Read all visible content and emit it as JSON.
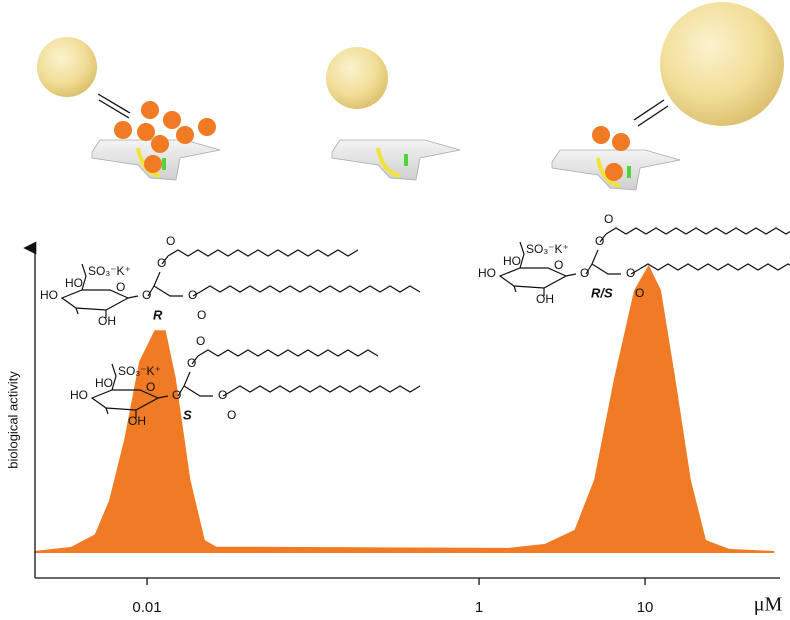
{
  "chart_data": {
    "type": "area",
    "y_label": "biological activity",
    "x_unit": "μM",
    "log_x": true,
    "color": "#f07b24",
    "x": [
      0.0021,
      0.0035,
      0.0049,
      0.006,
      0.0074,
      0.0091,
      0.0112,
      0.0128,
      0.0147,
      0.018,
      0.022,
      0.026,
      1.5,
      2.5,
      3.8,
      5,
      6.6,
      8.7,
      10.5,
      12.3,
      15,
      18.6,
      23,
      32,
      60
    ],
    "values": [
      7.7,
      8.9,
      12.7,
      23,
      41,
      64,
      73,
      73,
      59,
      29,
      11,
      9,
      8.6,
      9.8,
      14,
      29,
      59,
      85,
      92,
      85,
      59,
      29,
      11,
      8.3,
      7.7
    ],
    "xlim": [
      0.002,
      65
    ],
    "ylim": [
      0,
      100
    ],
    "xticks": [
      0.01,
      1,
      10
    ],
    "structures": [
      {
        "labels": [
          "SO₃⁻K⁺",
          "HO",
          "HO",
          "OH",
          "O",
          "O",
          "O",
          "O",
          "O",
          "O",
          "R"
        ]
      },
      {
        "labels": [
          "SO₃⁻K⁺",
          "HO",
          "HO",
          "OH",
          "O",
          "O",
          "O",
          "O",
          "O",
          "O",
          "S"
        ]
      },
      {
        "labels": [
          "SO₃⁻K⁺",
          "HO",
          "HO",
          "OH",
          "O",
          "O",
          "O",
          "O",
          "O",
          "O",
          "R/S"
        ]
      }
    ]
  }
}
